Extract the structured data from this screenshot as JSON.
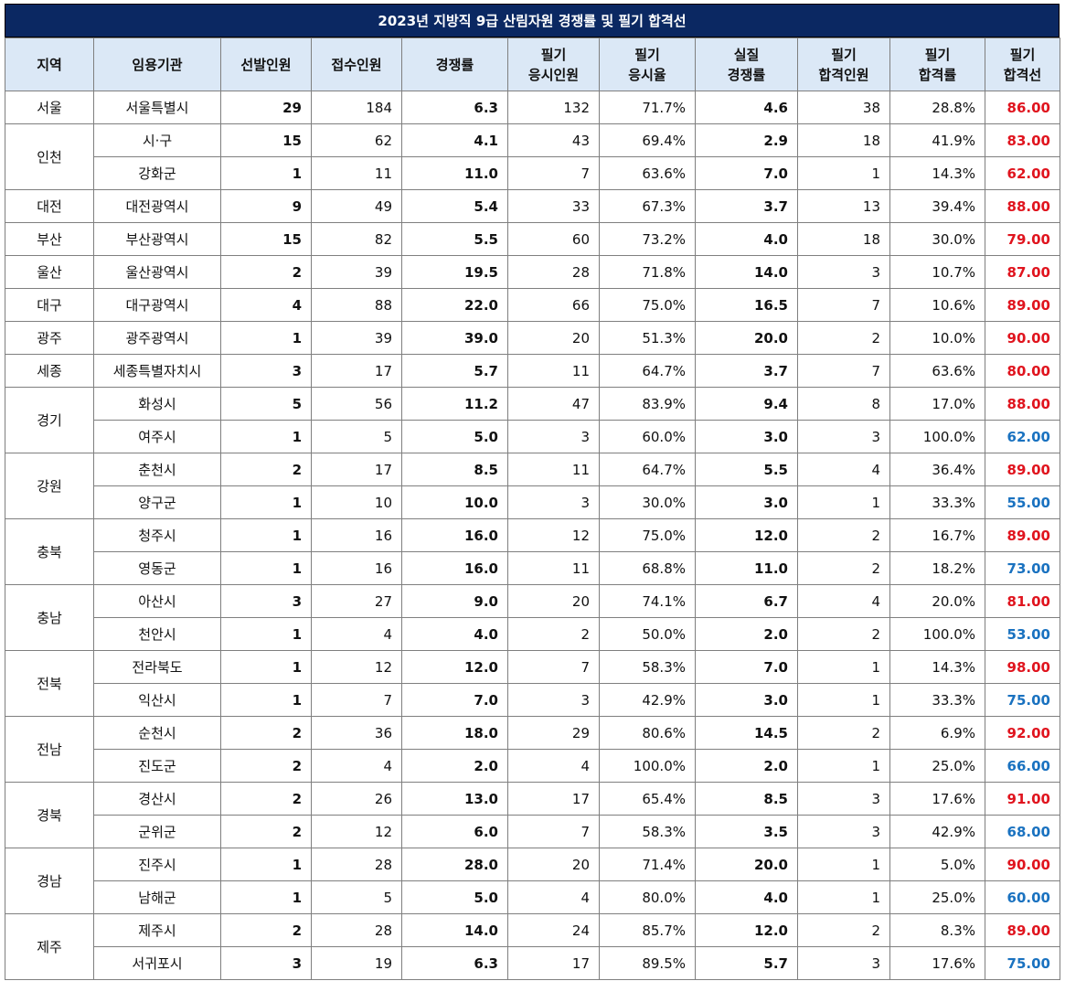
{
  "title": "2023년 지방직 9급 산림자원 경쟁률 및 필기 합격선",
  "headers": [
    [
      "지역"
    ],
    [
      "임용기관"
    ],
    [
      "선발인원"
    ],
    [
      "접수인원"
    ],
    [
      "경쟁률"
    ],
    [
      "필기",
      "응시인원"
    ],
    [
      "필기",
      "응시율"
    ],
    [
      "실질",
      "경쟁률"
    ],
    [
      "필기",
      "합격인원"
    ],
    [
      "필기",
      "합격률"
    ],
    [
      "필기",
      "합격선"
    ]
  ],
  "colors": {
    "header_bg": "#0b2862",
    "column_header_bg": "#dbe8f6",
    "high_cutoff": "#e0141e",
    "low_cutoff": "#1a72c0"
  },
  "regions": [
    {
      "name": "서울",
      "rows": [
        {
          "agency": "서울특별시",
          "selected": "29",
          "applied": "184",
          "ratio": "6.3",
          "test_takers": "132",
          "test_rate": "71.7%",
          "real_ratio": "4.6",
          "passed": "38",
          "pass_rate": "28.8%",
          "cutoff": "86.00",
          "cutoff_color": "red"
        }
      ]
    },
    {
      "name": "인천",
      "rows": [
        {
          "agency": "시·구",
          "selected": "15",
          "applied": "62",
          "ratio": "4.1",
          "test_takers": "43",
          "test_rate": "69.4%",
          "real_ratio": "2.9",
          "passed": "18",
          "pass_rate": "41.9%",
          "cutoff": "83.00",
          "cutoff_color": "red"
        },
        {
          "agency": "강화군",
          "selected": "1",
          "applied": "11",
          "ratio": "11.0",
          "test_takers": "7",
          "test_rate": "63.6%",
          "real_ratio": "7.0",
          "passed": "1",
          "pass_rate": "14.3%",
          "cutoff": "62.00",
          "cutoff_color": "red"
        }
      ]
    },
    {
      "name": "대전",
      "rows": [
        {
          "agency": "대전광역시",
          "selected": "9",
          "applied": "49",
          "ratio": "5.4",
          "test_takers": "33",
          "test_rate": "67.3%",
          "real_ratio": "3.7",
          "passed": "13",
          "pass_rate": "39.4%",
          "cutoff": "88.00",
          "cutoff_color": "red"
        }
      ]
    },
    {
      "name": "부산",
      "rows": [
        {
          "agency": "부산광역시",
          "selected": "15",
          "applied": "82",
          "ratio": "5.5",
          "test_takers": "60",
          "test_rate": "73.2%",
          "real_ratio": "4.0",
          "passed": "18",
          "pass_rate": "30.0%",
          "cutoff": "79.00",
          "cutoff_color": "red"
        }
      ]
    },
    {
      "name": "울산",
      "rows": [
        {
          "agency": "울산광역시",
          "selected": "2",
          "applied": "39",
          "ratio": "19.5",
          "test_takers": "28",
          "test_rate": "71.8%",
          "real_ratio": "14.0",
          "passed": "3",
          "pass_rate": "10.7%",
          "cutoff": "87.00",
          "cutoff_color": "red"
        }
      ]
    },
    {
      "name": "대구",
      "rows": [
        {
          "agency": "대구광역시",
          "selected": "4",
          "applied": "88",
          "ratio": "22.0",
          "test_takers": "66",
          "test_rate": "75.0%",
          "real_ratio": "16.5",
          "passed": "7",
          "pass_rate": "10.6%",
          "cutoff": "89.00",
          "cutoff_color": "red"
        }
      ]
    },
    {
      "name": "광주",
      "rows": [
        {
          "agency": "광주광역시",
          "selected": "1",
          "applied": "39",
          "ratio": "39.0",
          "test_takers": "20",
          "test_rate": "51.3%",
          "real_ratio": "20.0",
          "passed": "2",
          "pass_rate": "10.0%",
          "cutoff": "90.00",
          "cutoff_color": "red"
        }
      ]
    },
    {
      "name": "세종",
      "rows": [
        {
          "agency": "세종특별자치시",
          "selected": "3",
          "applied": "17",
          "ratio": "5.7",
          "test_takers": "11",
          "test_rate": "64.7%",
          "real_ratio": "3.7",
          "passed": "7",
          "pass_rate": "63.6%",
          "cutoff": "80.00",
          "cutoff_color": "red"
        }
      ]
    },
    {
      "name": "경기",
      "rows": [
        {
          "agency": "화성시",
          "selected": "5",
          "applied": "56",
          "ratio": "11.2",
          "test_takers": "47",
          "test_rate": "83.9%",
          "real_ratio": "9.4",
          "passed": "8",
          "pass_rate": "17.0%",
          "cutoff": "88.00",
          "cutoff_color": "red"
        },
        {
          "agency": "여주시",
          "selected": "1",
          "applied": "5",
          "ratio": "5.0",
          "test_takers": "3",
          "test_rate": "60.0%",
          "real_ratio": "3.0",
          "passed": "3",
          "pass_rate": "100.0%",
          "cutoff": "62.00",
          "cutoff_color": "blue"
        }
      ]
    },
    {
      "name": "강원",
      "rows": [
        {
          "agency": "춘천시",
          "selected": "2",
          "applied": "17",
          "ratio": "8.5",
          "test_takers": "11",
          "test_rate": "64.7%",
          "real_ratio": "5.5",
          "passed": "4",
          "pass_rate": "36.4%",
          "cutoff": "89.00",
          "cutoff_color": "red"
        },
        {
          "agency": "양구군",
          "selected": "1",
          "applied": "10",
          "ratio": "10.0",
          "test_takers": "3",
          "test_rate": "30.0%",
          "real_ratio": "3.0",
          "passed": "1",
          "pass_rate": "33.3%",
          "cutoff": "55.00",
          "cutoff_color": "blue"
        }
      ]
    },
    {
      "name": "충북",
      "rows": [
        {
          "agency": "청주시",
          "selected": "1",
          "applied": "16",
          "ratio": "16.0",
          "test_takers": "12",
          "test_rate": "75.0%",
          "real_ratio": "12.0",
          "passed": "2",
          "pass_rate": "16.7%",
          "cutoff": "89.00",
          "cutoff_color": "red"
        },
        {
          "agency": "영동군",
          "selected": "1",
          "applied": "16",
          "ratio": "16.0",
          "test_takers": "11",
          "test_rate": "68.8%",
          "real_ratio": "11.0",
          "passed": "2",
          "pass_rate": "18.2%",
          "cutoff": "73.00",
          "cutoff_color": "blue"
        }
      ]
    },
    {
      "name": "충남",
      "rows": [
        {
          "agency": "아산시",
          "selected": "3",
          "applied": "27",
          "ratio": "9.0",
          "test_takers": "20",
          "test_rate": "74.1%",
          "real_ratio": "6.7",
          "passed": "4",
          "pass_rate": "20.0%",
          "cutoff": "81.00",
          "cutoff_color": "red"
        },
        {
          "agency": "천안시",
          "selected": "1",
          "applied": "4",
          "ratio": "4.0",
          "test_takers": "2",
          "test_rate": "50.0%",
          "real_ratio": "2.0",
          "passed": "2",
          "pass_rate": "100.0%",
          "cutoff": "53.00",
          "cutoff_color": "blue"
        }
      ]
    },
    {
      "name": "전북",
      "rows": [
        {
          "agency": "전라북도",
          "selected": "1",
          "applied": "12",
          "ratio": "12.0",
          "test_takers": "7",
          "test_rate": "58.3%",
          "real_ratio": "7.0",
          "passed": "1",
          "pass_rate": "14.3%",
          "cutoff": "98.00",
          "cutoff_color": "red"
        },
        {
          "agency": "익산시",
          "selected": "1",
          "applied": "7",
          "ratio": "7.0",
          "test_takers": "3",
          "test_rate": "42.9%",
          "real_ratio": "3.0",
          "passed": "1",
          "pass_rate": "33.3%",
          "cutoff": "75.00",
          "cutoff_color": "blue"
        }
      ]
    },
    {
      "name": "전남",
      "rows": [
        {
          "agency": "순천시",
          "selected": "2",
          "applied": "36",
          "ratio": "18.0",
          "test_takers": "29",
          "test_rate": "80.6%",
          "real_ratio": "14.5",
          "passed": "2",
          "pass_rate": "6.9%",
          "cutoff": "92.00",
          "cutoff_color": "red"
        },
        {
          "agency": "진도군",
          "selected": "2",
          "applied": "4",
          "ratio": "2.0",
          "test_takers": "4",
          "test_rate": "100.0%",
          "real_ratio": "2.0",
          "passed": "1",
          "pass_rate": "25.0%",
          "cutoff": "66.00",
          "cutoff_color": "blue"
        }
      ]
    },
    {
      "name": "경북",
      "rows": [
        {
          "agency": "경산시",
          "selected": "2",
          "applied": "26",
          "ratio": "13.0",
          "test_takers": "17",
          "test_rate": "65.4%",
          "real_ratio": "8.5",
          "passed": "3",
          "pass_rate": "17.6%",
          "cutoff": "91.00",
          "cutoff_color": "red"
        },
        {
          "agency": "군위군",
          "selected": "2",
          "applied": "12",
          "ratio": "6.0",
          "test_takers": "7",
          "test_rate": "58.3%",
          "real_ratio": "3.5",
          "passed": "3",
          "pass_rate": "42.9%",
          "cutoff": "68.00",
          "cutoff_color": "blue"
        }
      ]
    },
    {
      "name": "경남",
      "rows": [
        {
          "agency": "진주시",
          "selected": "1",
          "applied": "28",
          "ratio": "28.0",
          "test_takers": "20",
          "test_rate": "71.4%",
          "real_ratio": "20.0",
          "passed": "1",
          "pass_rate": "5.0%",
          "cutoff": "90.00",
          "cutoff_color": "red"
        },
        {
          "agency": "남해군",
          "selected": "1",
          "applied": "5",
          "ratio": "5.0",
          "test_takers": "4",
          "test_rate": "80.0%",
          "real_ratio": "4.0",
          "passed": "1",
          "pass_rate": "25.0%",
          "cutoff": "60.00",
          "cutoff_color": "blue"
        }
      ]
    },
    {
      "name": "제주",
      "rows": [
        {
          "agency": "제주시",
          "selected": "2",
          "applied": "28",
          "ratio": "14.0",
          "test_takers": "24",
          "test_rate": "85.7%",
          "real_ratio": "12.0",
          "passed": "2",
          "pass_rate": "8.3%",
          "cutoff": "89.00",
          "cutoff_color": "red"
        },
        {
          "agency": "서귀포시",
          "selected": "3",
          "applied": "19",
          "ratio": "6.3",
          "test_takers": "17",
          "test_rate": "89.5%",
          "real_ratio": "5.7",
          "passed": "3",
          "pass_rate": "17.6%",
          "cutoff": "75.00",
          "cutoff_color": "blue"
        }
      ]
    }
  ]
}
